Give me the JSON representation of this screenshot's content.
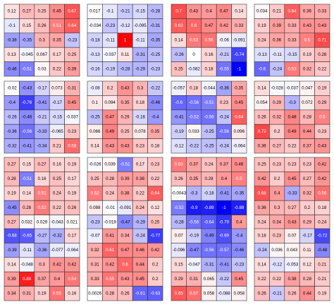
{
  "chart_data": {
    "type": "heatmap",
    "layout": {
      "rows": 4,
      "cols": 4,
      "cells_per_side": 5
    },
    "color_scale": {
      "min": -1,
      "max": 1,
      "low": "#0000ff",
      "mid": "#ffffff",
      "high": "#ff0000"
    },
    "panels": [
      {
        "values": [
          [
            0.12,
            0.27,
            0.25,
            0.45,
            0.67
          ],
          [
            -0.1,
            0.15,
            0.26,
            0.51,
            0.64
          ],
          [
            -0.38,
            -0.35,
            0.3,
            0.35,
            -0.23
          ],
          [
            0.13,
            -0.045,
            0.067,
            0.17,
            0.25
          ],
          [
            -0.46,
            -0.51,
            0.03,
            0.22,
            0.39
          ]
        ]
      },
      {
        "values": [
          [
            0.017,
            -0.1,
            -0.21,
            -0.15,
            -0.28
          ],
          [
            -0.034,
            -0.23,
            -0.12,
            -0.095,
            -0.31
          ],
          [
            -0.18,
            -0.11,
            1,
            -0.11,
            -0.35
          ],
          [
            -0.13,
            -0.037,
            0.11,
            -0.31,
            -0.25
          ],
          [
            -0.16,
            -0.19,
            -0.28,
            -0.29,
            -0.23
          ]
        ]
      },
      {
        "values": [
          [
            0.7,
            0.43,
            0.4,
            0.47,
            0.14
          ],
          [
            0.63,
            0.6,
            0.47,
            0.42,
            0.33
          ],
          [
            0.14,
            0.53,
            0.56,
            -0.06,
            -0.091
          ],
          [
            -0.26,
            0.0,
            0.16,
            -0.21,
            -0.74
          ],
          [
            0.25,
            -0.082,
            0.18,
            -0.55,
            -1
          ]
        ]
      },
      {
        "values": [
          [
            0.034,
            0.21,
            0.64,
            0.36,
            0.33
          ],
          [
            0.19,
            0.39,
            0.33,
            0.43,
            0.43
          ],
          [
            0.24,
            0.36,
            0.33,
            0.5,
            0.71
          ],
          [
            -0.13,
            -0.11,
            -0.15,
            0.19,
            0.28
          ],
          [
            -0.6,
            -0.24,
            0.53,
            0.32,
            0.22
          ]
        ]
      },
      {
        "values": [
          [
            -0.02,
            -0.43,
            -0.17,
            0.073,
            0.31
          ],
          [
            -0.4,
            -0.76,
            -0.41,
            -0.17,
            0.45
          ],
          [
            -0.26,
            -0.46,
            -0.21,
            -0.15,
            -0.037
          ],
          [
            -0.36,
            -0.56,
            -0.33,
            -0.065,
            0.23
          ],
          [
            -0.32,
            -0.41,
            -0.34,
            0.21,
            0.58
          ]
        ]
      },
      {
        "values": [
          [
            -0.08,
            0.2,
            0.43,
            0.3,
            -0.22
          ],
          [
            0.1,
            0.094,
            0.35,
            0.18,
            -0.46
          ],
          [
            -0.25,
            0.47,
            0.29,
            -0.16,
            -0.4
          ],
          [
            0.066,
            0.49,
            0.25,
            0.078,
            0.35
          ],
          [
            0.14,
            0.43,
            0.43,
            0.23,
            0.18
          ]
        ]
      },
      {
        "values": [
          [
            -0.057,
            0.18,
            -0.044,
            -0.36,
            0.35
          ],
          [
            -0.6,
            -0.56,
            -0.51,
            0.23,
            0.45
          ],
          [
            -0.41,
            -0.52,
            -0.56,
            -0.24,
            0.64
          ],
          [
            -0.19,
            0.033,
            -0.25,
            -0.56,
            0.096
          ],
          [
            -0.12,
            -0.22,
            -0.25,
            -0.24,
            -0.064
          ]
        ]
      },
      {
        "values": [
          [
            0.14,
            -0.028,
            -0.037,
            0.047,
            0.19
          ],
          [
            0.054,
            0.29,
            -0.3,
            0.072,
            0.29
          ],
          [
            0.26,
            0.32,
            0.48,
            0.28,
            0.5
          ],
          [
            0.72,
            0.2,
            0.49,
            0.44,
            0.23
          ],
          [
            0.36,
            0.27,
            0.22,
            0.37,
            0.43
          ]
        ]
      },
      {
        "values": [
          [
            0.27,
            0.15,
            0.27,
            0.16,
            0.19
          ],
          [
            0.28,
            -0.51,
            0.16,
            0.25,
            0.17
          ],
          [
            0.19,
            0.14,
            0.51,
            0.24,
            0.19
          ],
          [
            -0.45,
            0.28,
            0.52,
            0.22,
            0.26
          ],
          [
            0.27,
            0.032,
            0.029,
            -0.043,
            0.021
          ]
        ]
      },
      {
        "values": [
          [
            -0.026,
            0.039,
            -0.51,
            0.17,
            0.23
          ],
          [
            0.25,
            0.28,
            0.39,
            0.38,
            0.22
          ],
          [
            0.52,
            0.24,
            0.38,
            0.22,
            0.64
          ],
          [
            0.088,
            -0.01,
            -0.091,
            0.24,
            0.12
          ],
          [
            -0.23,
            -0.019,
            -0.47,
            -0.29,
            0.25
          ]
        ]
      },
      {
        "values": [
          [
            0.53,
            0.37,
            0.24,
            0.37,
            0.46
          ],
          [
            0.26,
            0.35,
            0.28,
            0.4,
            0.5
          ],
          [
            -0.0043,
            -0.3,
            -0.18,
            -0.41,
            -0.35
          ],
          [
            -0.52,
            -0.9,
            -0.88,
            -1,
            -0.88
          ],
          [
            -0.28,
            -0.56,
            -0.64,
            -0.79,
            0.4
          ]
        ]
      },
      {
        "values": [
          [
            0.25,
            0.23,
            0.23,
            0.23,
            0.42
          ],
          [
            0.42,
            0.2,
            0.45,
            0.27,
            0.42
          ],
          [
            0.68,
            0.4,
            -0.33,
            0.32,
            0.56
          ],
          [
            0.36,
            0.3,
            0.27,
            0.2,
            0.18
          ],
          [
            0.24,
            0.34,
            0.43,
            0.29,
            0.24
          ]
        ]
      },
      {
        "values": [
          [
            -0.68,
            -0.65,
            -0.27,
            -0.32,
            0.17
          ],
          [
            -0.39,
            -0.11,
            -0.36,
            -0.077,
            -0.064
          ],
          [
            0.14,
            -0.048,
            0.3,
            0.42,
            0.42
          ],
          [
            0.39,
            0.88,
            0.37,
            0.4,
            0.54
          ],
          [
            0.34,
            0.31,
            0.19,
            0.55,
            0.16
          ]
        ]
      },
      {
        "values": [
          [
            -0.07,
            0.41,
            0.34,
            -0.24,
            -0.77
          ],
          [
            0.32,
            0.61,
            0.47,
            0.46,
            0.42
          ],
          [
            0.31,
            0.42,
            0.6,
            0.44,
            0.2
          ],
          [
            0.33,
            0.55,
            0.43,
            0.45,
            0.2
          ],
          [
            0.0026,
            0.28,
            0.26,
            -0.61,
            -0.63
          ]
        ]
      },
      {
        "values": [
          [
            0.07,
            -0.19,
            -0.49,
            -0.69,
            -0.4
          ],
          [
            -0.096,
            -0.47,
            -0.56,
            -0.57,
            -0.46
          ],
          [
            0.15,
            -0.047,
            -0.31,
            -0.41,
            -0.23
          ],
          [
            0.29,
            0.31,
            0.065,
            -0.22,
            0.45
          ],
          [
            0.65,
            0.57,
            0.058,
            -0.088,
            0.058
          ]
        ]
      },
      {
        "values": [
          [
            0.18,
            0.23,
            0.07,
            -0.17,
            -0.72
          ],
          [
            -0.24,
            0.036,
            0.043,
            0.11,
            -0.48
          ],
          [
            0.14,
            -0.12,
            -0.053,
            0.12,
            0.21
          ],
          [
            0.22,
            0.22,
            0.38,
            0.28,
            0.21
          ],
          [
            0.26,
            -0.21,
            0.26,
            0.44,
            0.19
          ]
        ]
      }
    ]
  }
}
